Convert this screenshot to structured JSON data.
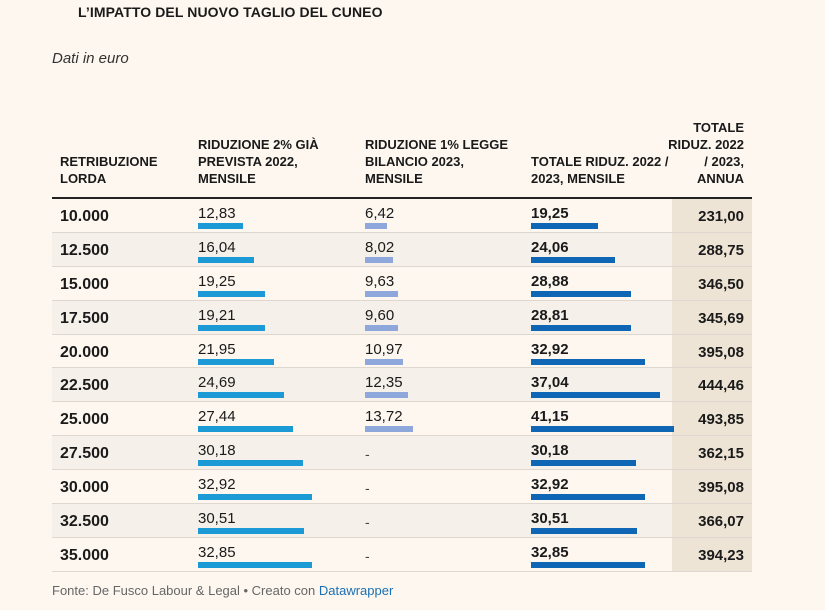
{
  "title": "L’IMPATTO DEL NUOVO TAGLIO DEL CUNEO",
  "subtitle": "Dati in euro",
  "headers": {
    "col0": "RETRIBUZIONE LORDA",
    "col1": "RIDUZIONE 2% GIÀ PREVISTA 2022, MENSILE",
    "col2": "RIDUZIONE 1% LEGGE BILANCIO 2023, MENSILE",
    "col3": "TOTALE RIDUZ. 2022 / 2023, MENSILE",
    "col4": "TOTALE RIDUZ. 2022 / 2023, ANNUA"
  },
  "footer": {
    "source": "Fonte: De Fusco Labour & Legal • Creato con ",
    "link": "Datawrapper"
  },
  "colors": {
    "col1_bar": "#1c9ad6",
    "col2_bar": "#8fa8dc",
    "col3_bar": "#0e66b5"
  },
  "chart_data": {
    "type": "table",
    "title": "L’IMPATTO DEL NUOVO TAGLIO DEL CUNEO",
    "bar_max": 41.15,
    "rows": [
      {
        "retribuzione": "10.000",
        "r2022": "12,83",
        "r2023": "6,42",
        "totale": "19,25",
        "annua": "231,00",
        "v1": 12.83,
        "v2": 6.42,
        "v3": 19.25
      },
      {
        "retribuzione": "12.500",
        "r2022": "16,04",
        "r2023": "8,02",
        "totale": "24,06",
        "annua": "288,75",
        "v1": 16.04,
        "v2": 8.02,
        "v3": 24.06
      },
      {
        "retribuzione": "15.000",
        "r2022": "19,25",
        "r2023": "9,63",
        "totale": "28,88",
        "annua": "346,50",
        "v1": 19.25,
        "v2": 9.63,
        "v3": 28.88
      },
      {
        "retribuzione": "17.500",
        "r2022": "19,21",
        "r2023": "9,60",
        "totale": "28,81",
        "annua": "345,69",
        "v1": 19.21,
        "v2": 9.6,
        "v3": 28.81
      },
      {
        "retribuzione": "20.000",
        "r2022": "21,95",
        "r2023": "10,97",
        "totale": "32,92",
        "annua": "395,08",
        "v1": 21.95,
        "v2": 10.97,
        "v3": 32.92
      },
      {
        "retribuzione": "22.500",
        "r2022": "24,69",
        "r2023": "12,35",
        "totale": "37,04",
        "annua": "444,46",
        "v1": 24.69,
        "v2": 12.35,
        "v3": 37.04
      },
      {
        "retribuzione": "25.000",
        "r2022": "27,44",
        "r2023": "13,72",
        "totale": "41,15",
        "annua": "493,85",
        "v1": 27.44,
        "v2": 13.72,
        "v3": 41.15
      },
      {
        "retribuzione": "27.500",
        "r2022": "30,18",
        "r2023": "-",
        "totale": "30,18",
        "annua": "362,15",
        "v1": 30.18,
        "v2": null,
        "v3": 30.18
      },
      {
        "retribuzione": "30.000",
        "r2022": "32,92",
        "r2023": "-",
        "totale": "32,92",
        "annua": "395,08",
        "v1": 32.92,
        "v2": null,
        "v3": 32.92
      },
      {
        "retribuzione": "32.500",
        "r2022": "30,51",
        "r2023": "-",
        "totale": "30,51",
        "annua": "366,07",
        "v1": 30.51,
        "v2": null,
        "v3": 30.51
      },
      {
        "retribuzione": "35.000",
        "r2022": "32,85",
        "r2023": "-",
        "totale": "32,85",
        "annua": "394,23",
        "v1": 32.85,
        "v2": null,
        "v3": 32.85
      }
    ]
  }
}
